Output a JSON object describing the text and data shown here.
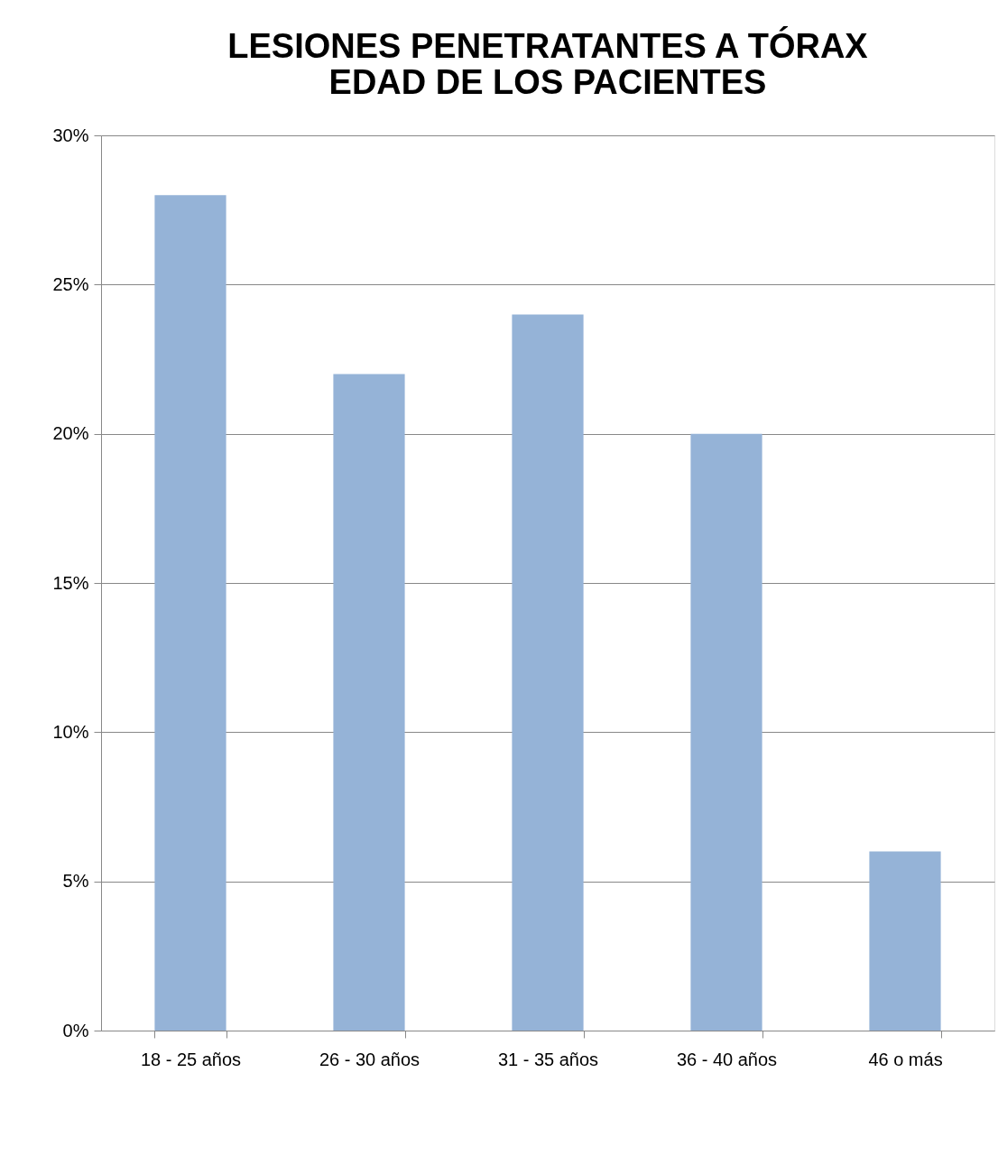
{
  "chart_data": {
    "type": "bar",
    "title": [
      "LESIONES PENETRATANTES A TÓRAX",
      "EDAD DE LOS PACIENTES"
    ],
    "categories": [
      "18 - 25 años",
      "26 - 30 años",
      "31 - 35 años",
      "36 - 40 años",
      "46 o más"
    ],
    "values": [
      28,
      22,
      24,
      20,
      6
    ],
    "color": "#95b3d7",
    "ylim": [
      0,
      30
    ],
    "yticks": [
      {
        "value": 0,
        "label": "0%"
      },
      {
        "value": 5,
        "label": "5%"
      },
      {
        "value": 10,
        "label": "10%"
      },
      {
        "value": 15,
        "label": "15%"
      },
      {
        "value": 20,
        "label": "20%"
      },
      {
        "value": 25,
        "label": "25%"
      },
      {
        "value": 30,
        "label": "30%"
      }
    ],
    "grid": "y"
  }
}
